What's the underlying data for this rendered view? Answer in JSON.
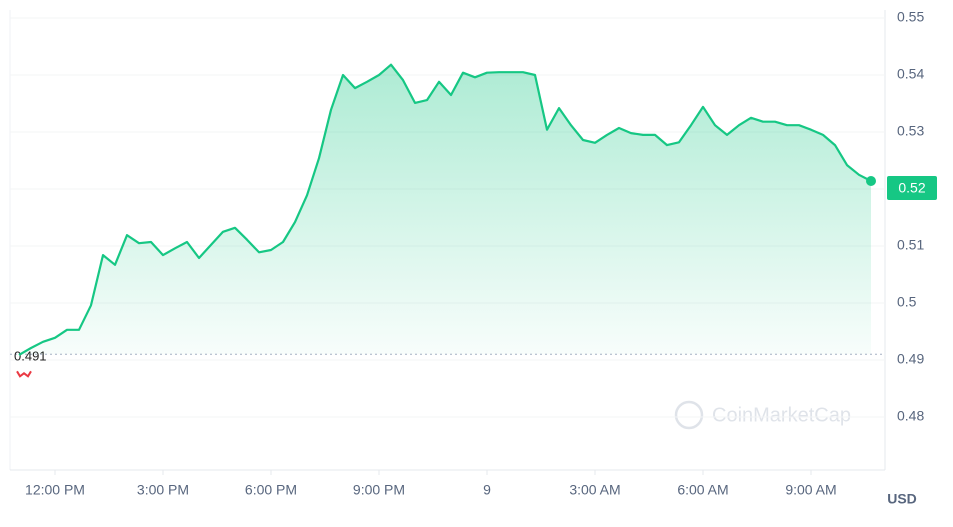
{
  "chart_data": {
    "type": "line",
    "series": [
      {
        "name": "Price",
        "color": "#16c784",
        "values": [
          0.4909,
          0.4921,
          0.4932,
          0.4939,
          0.4953,
          0.4953,
          0.4996,
          0.5084,
          0.5067,
          0.5119,
          0.5105,
          0.5107,
          0.5084,
          0.5096,
          0.5107,
          0.5079,
          0.5102,
          0.5125,
          0.5132,
          0.5111,
          0.5089,
          0.5093,
          0.5107,
          0.5142,
          0.5189,
          0.5254,
          0.5339,
          0.54,
          0.5377,
          0.5388,
          0.54,
          0.5418,
          0.5391,
          0.5351,
          0.5356,
          0.5388,
          0.5365,
          0.5404,
          0.5396,
          0.5404,
          0.5405,
          0.5405,
          0.5405,
          0.54,
          0.5304,
          0.5342,
          0.5312,
          0.5286,
          0.5281,
          0.5295,
          0.5307,
          0.5298,
          0.5295,
          0.5295,
          0.5277,
          0.5282,
          0.5312,
          0.5344,
          0.5312,
          0.5295,
          0.5312,
          0.5325,
          0.5318,
          0.5318,
          0.5312,
          0.5312,
          0.5304,
          0.5295,
          0.5277,
          0.5242,
          0.5225,
          0.5214
        ]
      }
    ],
    "xlim": [
      0,
      71
    ],
    "xticks": [
      {
        "value": 3,
        "label": "12:00 PM"
      },
      {
        "value": 12,
        "label": "3:00 PM"
      },
      {
        "value": 21,
        "label": "6:00 PM"
      },
      {
        "value": 30,
        "label": "9:00 PM"
      },
      {
        "value": 39,
        "label": "9"
      },
      {
        "value": 48,
        "label": "3:00 AM"
      },
      {
        "value": 57,
        "label": "6:00 AM"
      },
      {
        "value": 66,
        "label": "9:00 AM"
      }
    ],
    "ylim": [
      0.48,
      0.55
    ],
    "yticks": [
      0.48,
      0.49,
      0.5,
      0.51,
      0.52,
      0.53,
      0.54,
      0.55
    ],
    "grid": true,
    "open_price": 0.491,
    "last_price": 0.52,
    "currency": "USD",
    "watermark": "CoinMarketCap"
  }
}
